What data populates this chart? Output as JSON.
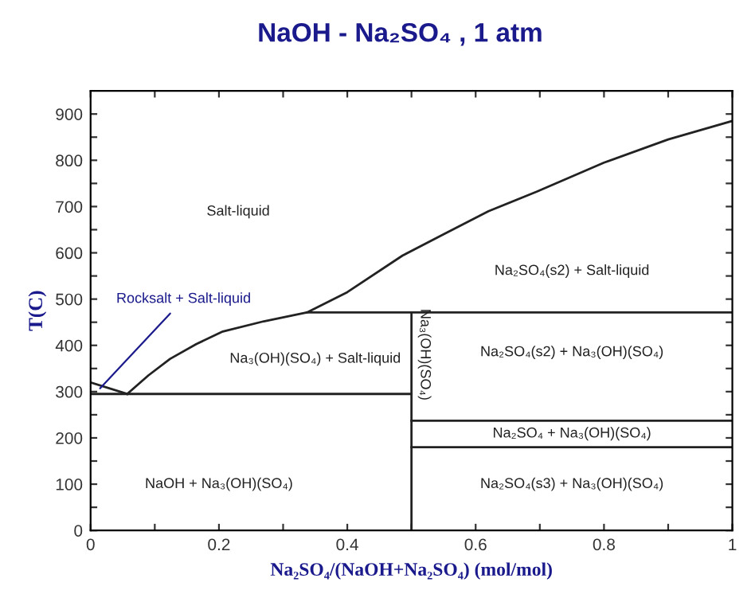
{
  "chart_data": {
    "type": "line",
    "title": "NaOH - Na₂SO₄ , 1 atm",
    "xlabel": "Na₂SO₄/(NaOH+Na₂SO₄) (mol/mol)",
    "ylabel": "T(C)",
    "series": [
      {
        "color": "#222222",
        "x": [
          0.057,
          0.09,
          0.124,
          0.165,
          0.206,
          0.27,
          0.337,
          0.4,
          0.486,
          0.55,
          0.62,
          0.695,
          0.8,
          0.9,
          1.0
        ],
        "values": [
          295,
          335,
          371,
          403,
          430,
          452,
          471,
          515,
          594,
          640,
          690,
          732,
          795,
          845,
          885
        ]
      },
      {
        "color": "#222222",
        "x": [
          0,
          0.057
        ],
        "values": [
          320,
          295
        ]
      },
      {
        "color": "#222222",
        "x": [
          0,
          0.5
        ],
        "values": [
          295,
          295
        ]
      },
      {
        "color": "#222222",
        "x": [
          0.337,
          1
        ],
        "values": [
          471,
          471
        ]
      },
      {
        "color": "#222222",
        "x": [
          0.5,
          0.5
        ],
        "values": [
          0,
          471
        ]
      },
      {
        "color": "#222222",
        "x": [
          0.5,
          1
        ],
        "values": [
          237,
          237
        ]
      },
      {
        "color": "#222222",
        "x": [
          0.5,
          1
        ],
        "values": [
          180,
          180
        ]
      }
    ],
    "annotations": [
      "Salt-liquid",
      "Na₂SO₄(s2) + Salt-liquid",
      {
        "text": "Rocksalt + Salt-liquid",
        "x": 0.01,
        "y": 300
      },
      "Na₃(OH)(SO₄) + Salt-liquid",
      "Na₃(OH)(SO₄)",
      "Na₂SO₄(s2) + Na₃(OH)(SO₄)",
      "Na₂SO₄ + Na₃(OH)(SO₄)",
      "NaOH + Na₃(OH)(SO₄)",
      "Na₂SO₄(s3) + Na₃(OH)(SO₄)"
    ],
    "xlim": [
      0,
      1
    ],
    "ylim": [
      0,
      950
    ],
    "xticks": [
      0,
      {
        "value": 0.1,
        "label": null
      },
      0.2,
      {
        "value": 0.3,
        "label": null
      },
      0.4,
      {
        "value": 0.5,
        "label": null
      },
      0.6,
      {
        "value": 0.7,
        "label": null
      },
      0.8,
      {
        "value": 0.9,
        "label": null
      },
      1
    ],
    "yticks": [
      0,
      {
        "value": 50,
        "label": null
      },
      100,
      {
        "value": 150,
        "label": null
      },
      200,
      {
        "value": 250,
        "label": null
      },
      300,
      {
        "value": 350,
        "label": null
      },
      400,
      {
        "value": 450,
        "label": null
      },
      500,
      {
        "value": 550,
        "label": null
      },
      600,
      {
        "value": 650,
        "label": null
      },
      700,
      {
        "value": 750,
        "label": null
      },
      800,
      {
        "value": 850,
        "label": null
      },
      900
    ],
    "grid": false,
    "legend": false,
    "marker": "none",
    "line_style": "solid"
  }
}
